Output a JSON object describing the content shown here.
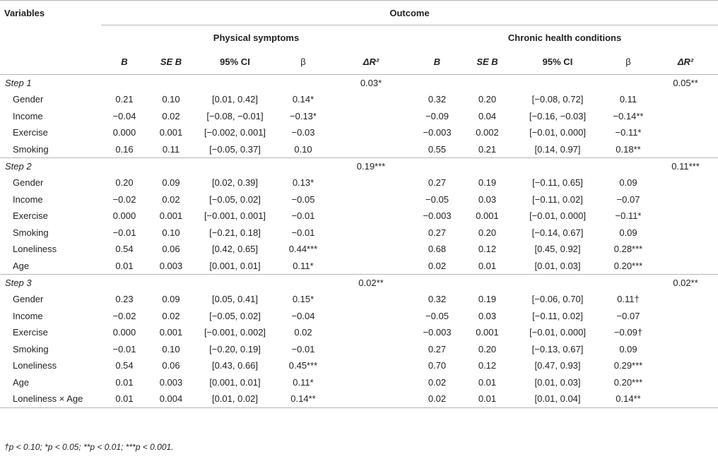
{
  "headers": {
    "variables": "Variables",
    "outcome": "Outcome",
    "group1": "Physical symptoms",
    "group2": "Chronic health conditions",
    "cols": [
      "B",
      "SE B",
      "95% CI",
      "β",
      "ΔR²"
    ]
  },
  "steps": [
    {
      "label": "Step 1",
      "r2_phys": "0.03*",
      "r2_chronic": "0.05**",
      "rows": [
        {
          "var": "Gender",
          "p": [
            "0.21",
            "0.10",
            "[0.01, 0.42]",
            "0.14*"
          ],
          "c": [
            "0.32",
            "0.20",
            "[−0.08, 0.72]",
            "0.11"
          ]
        },
        {
          "var": "Income",
          "p": [
            "−0.04",
            "0.02",
            "[−0.08, −0.01]",
            "−0.13*"
          ],
          "c": [
            "−0.09",
            "0.04",
            "[−0.16, −0.03]",
            "−0.14**"
          ]
        },
        {
          "var": "Exercise",
          "p": [
            "0.000",
            "0.001",
            "[−0.002, 0.001]",
            "−0.03"
          ],
          "c": [
            "−0.003",
            "0.002",
            "[−0.01, 0.000]",
            "−0.11*"
          ]
        },
        {
          "var": "Smoking",
          "p": [
            "0.16",
            "0.11",
            "[−0.05, 0.37]",
            "0.10"
          ],
          "c": [
            "0.55",
            "0.21",
            "[0.14, 0.97]",
            "0.18**"
          ]
        }
      ]
    },
    {
      "label": "Step 2",
      "r2_phys": "0.19***",
      "r2_chronic": "0.11***",
      "rows": [
        {
          "var": "Gender",
          "p": [
            "0.20",
            "0.09",
            "[0.02, 0.39]",
            "0.13*"
          ],
          "c": [
            "0.27",
            "0.19",
            "[−0.11, 0.65]",
            "0.09"
          ]
        },
        {
          "var": "Income",
          "p": [
            "−0.02",
            "0.02",
            "[−0.05, 0.02]",
            "−0.05"
          ],
          "c": [
            "−0.05",
            "0.03",
            "[−0.11, 0.02]",
            "−0.07"
          ]
        },
        {
          "var": "Exercise",
          "p": [
            "0.000",
            "0.001",
            "[−0.001, 0.001]",
            "−0.01"
          ],
          "c": [
            "−0.003",
            "0.001",
            "[−0.01, 0.000]",
            "−0.11*"
          ]
        },
        {
          "var": "Smoking",
          "p": [
            "−0.01",
            "0.10",
            "[−0.21, 0.18]",
            "−0.01"
          ],
          "c": [
            "0.27",
            "0.20",
            "[−0.14, 0.67]",
            "0.09"
          ]
        },
        {
          "var": "Loneliness",
          "p": [
            "0.54",
            "0.06",
            "[0.42, 0.65]",
            "0.44***"
          ],
          "c": [
            "0.68",
            "0.12",
            "[0.45, 0.92]",
            "0.28***"
          ]
        },
        {
          "var": "Age",
          "p": [
            "0.01",
            "0.003",
            "[0.001, 0.01]",
            "0.11*"
          ],
          "c": [
            "0.02",
            "0.01",
            "[0.01, 0.03]",
            "0.20***"
          ]
        }
      ]
    },
    {
      "label": "Step 3",
      "r2_phys": "0.02**",
      "r2_chronic": "0.02**",
      "rows": [
        {
          "var": "Gender",
          "p": [
            "0.23",
            "0.09",
            "[0.05, 0.41]",
            "0.15*"
          ],
          "c": [
            "0.32",
            "0.19",
            "[−0.06, 0.70]",
            "0.11†"
          ]
        },
        {
          "var": "Income",
          "p": [
            "−0.02",
            "0.02",
            "[−0.05, 0.02]",
            "−0.04"
          ],
          "c": [
            "−0.05",
            "0.03",
            "[−0.11, 0.02]",
            "−0.07"
          ]
        },
        {
          "var": "Exercise",
          "p": [
            "0.000",
            "0.001",
            "[−0.001, 0.002]",
            "0.02"
          ],
          "c": [
            "−0.003",
            "0.001",
            "[−0.01, 0.000]",
            "−0.09†"
          ]
        },
        {
          "var": "Smoking",
          "p": [
            "−0.01",
            "0.10",
            "[−0.20, 0.19]",
            "−0.01"
          ],
          "c": [
            "0.27",
            "0.20",
            "[−0.13, 0.67]",
            "0.09"
          ]
        },
        {
          "var": "Loneliness",
          "p": [
            "0.54",
            "0.06",
            "[0.43, 0.66]",
            "0.45***"
          ],
          "c": [
            "0.70",
            "0.12",
            "[0.47, 0.93]",
            "0.29***"
          ]
        },
        {
          "var": "Age",
          "p": [
            "0.01",
            "0.003",
            "[0.001, 0.01]",
            "0.11*"
          ],
          "c": [
            "0.02",
            "0.01",
            "[0.01, 0.03]",
            "0.20***"
          ]
        },
        {
          "var": "Loneliness × Age",
          "p": [
            "0.01",
            "0.004",
            "[0.01, 0.02]",
            "0.14**"
          ],
          "c": [
            "0.02",
            "0.01",
            "[0.01, 0.04]",
            "0.14**"
          ]
        }
      ]
    }
  ],
  "footnote": "†p < 0.10; *p < 0.05; **p < 0.01; ***p < 0.001."
}
